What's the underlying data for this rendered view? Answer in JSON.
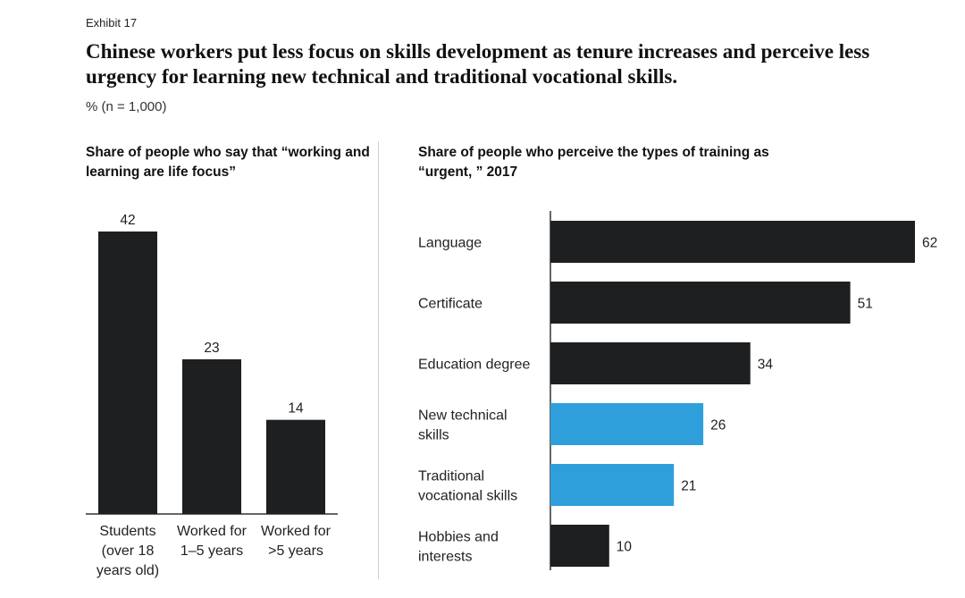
{
  "exhibit_label": "Exhibit 17",
  "title": "Chinese workers put less focus on skills development as tenure increases and perceive less urgency for learning new technical and traditional vocational skills.",
  "subtitle": "% (n = 1,000)",
  "colors": {
    "dark": "#1d1f21",
    "blue": "#2f9fdc",
    "axis": "#333333"
  },
  "chart_data": [
    {
      "type": "bar",
      "orientation": "vertical",
      "title": "Share of people who say that “working and learning are life focus”",
      "categories": [
        [
          "Students",
          "(over 18",
          "years old)"
        ],
        [
          "Worked for",
          "1–5 years"
        ],
        [
          "Worked for",
          ">5 years"
        ]
      ],
      "values": [
        42,
        23,
        14
      ],
      "bar_colors": [
        "dark",
        "dark",
        "dark"
      ],
      "ylim": [
        0,
        45
      ]
    },
    {
      "type": "bar",
      "orientation": "horizontal",
      "title": "Share of people who perceive the types of training as “urgent, ” 2017",
      "categories": [
        [
          "Language"
        ],
        [
          "Certificate"
        ],
        [
          "Education degree"
        ],
        [
          "New technical",
          "skills"
        ],
        [
          "Traditional",
          "vocational skills"
        ],
        [
          "Hobbies and",
          "interests"
        ]
      ],
      "values": [
        62,
        51,
        34,
        26,
        21,
        10
      ],
      "bar_colors": [
        "dark",
        "dark",
        "dark",
        "blue",
        "blue",
        "dark"
      ],
      "xlim": [
        0,
        62
      ]
    }
  ]
}
